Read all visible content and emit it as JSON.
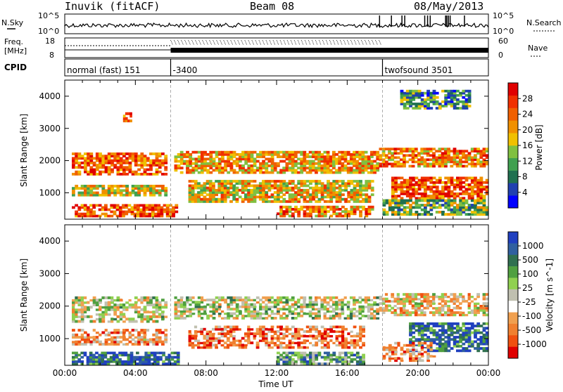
{
  "header": {
    "station": "Inuvik (fitACF)",
    "beam": "Beam 08",
    "date": "08/May/2013"
  },
  "status_panels": {
    "nsky_label": "N.Sky",
    "nsearch_label": "N.Search",
    "freq_label_1": "Freq.",
    "freq_label_2": "[MHz]",
    "nave_label": "Nave",
    "cpid_label": "CPID",
    "noise_ticks_left": [
      "10^5",
      "10^0"
    ],
    "noise_ticks_right": [
      "10^5",
      "10^0"
    ],
    "freq_ticks_left": [
      "18",
      "8"
    ],
    "nave_ticks_right": [
      "60",
      "0"
    ],
    "cpid_segments": [
      {
        "label": "normal (fast) 151",
        "start_hour": 0
      },
      {
        "label": "-3400",
        "start_hour": 6.0
      },
      {
        "label": "twofsound 3501",
        "start_hour": 18.0
      }
    ]
  },
  "chart_data": [
    {
      "type": "heatmap",
      "title": "",
      "ylabel": "Slant Range [km]",
      "xlabel": "",
      "xlim": [
        0,
        24
      ],
      "ylim": [
        180,
        4500
      ],
      "yticks": [
        "1000",
        "2000",
        "3000",
        "4000"
      ],
      "colorbar": {
        "label": "Power [dB]",
        "ticks": [
          "4",
          "8",
          "12",
          "16",
          "20",
          "24",
          "28"
        ],
        "colors": [
          "#0000ff",
          "#2040b0",
          "#207050",
          "#40a050",
          "#80c040",
          "#f0c000",
          "#f09000",
          "#f06000",
          "#f03000",
          "#e00000"
        ]
      },
      "bands": [
        {
          "t0": 0.4,
          "t1": 5.8,
          "r0": 1550,
          "r1": 2250,
          "level": 0.75
        },
        {
          "t0": 0.4,
          "t1": 5.8,
          "r0": 900,
          "r1": 1250,
          "level": 0.55
        },
        {
          "t0": 0.4,
          "t1": 6.4,
          "r0": 250,
          "r1": 650,
          "level": 0.8
        },
        {
          "t0": 6.2,
          "t1": 17.8,
          "r0": 1600,
          "r1": 2300,
          "level": 0.65
        },
        {
          "t0": 7.0,
          "t1": 17.5,
          "r0": 700,
          "r1": 1400,
          "level": 0.6
        },
        {
          "t0": 12.0,
          "t1": 17.5,
          "r0": 250,
          "r1": 600,
          "level": 0.7
        },
        {
          "t0": 17.8,
          "t1": 24.0,
          "r0": 1800,
          "r1": 2400,
          "level": 0.7
        },
        {
          "t0": 18.5,
          "t1": 24.0,
          "r0": 800,
          "r1": 1500,
          "level": 0.8
        },
        {
          "t0": 18.0,
          "t1": 24.0,
          "r0": 300,
          "r1": 800,
          "level": 0.4
        },
        {
          "t0": 19.0,
          "t1": 23.0,
          "r0": 3600,
          "r1": 4200,
          "level": 0.3
        },
        {
          "t0": 3.3,
          "t1": 3.8,
          "r0": 3200,
          "r1": 3500,
          "level": 0.7
        }
      ]
    },
    {
      "type": "heatmap",
      "title": "",
      "ylabel": "Slant Range [km]",
      "xlabel": "Time UT",
      "xlim": [
        0,
        24
      ],
      "ylim": [
        180,
        4500
      ],
      "xticks": [
        "00:00",
        "04:00",
        "08:00",
        "12:00",
        "16:00",
        "20:00",
        "00:00"
      ],
      "yticks": [
        "1000",
        "2000",
        "3000",
        "4000"
      ],
      "colorbar": {
        "label": "Velocity [m s^-1]",
        "ticks": [
          "1000",
          "500",
          "100",
          "25",
          "-25",
          "-100",
          "-500",
          "-1000"
        ],
        "colors": [
          "#2040c0",
          "#3060a0",
          "#307050",
          "#50a040",
          "#90d050",
          "#c0c0b0",
          "#ffffff",
          "#f0a050",
          "#f08030",
          "#f05010",
          "#e00000"
        ]
      },
      "bands": [
        {
          "t0": 0.4,
          "t1": 5.8,
          "r0": 1500,
          "r1": 2300,
          "level": 0.5
        },
        {
          "t0": 0.4,
          "t1": 5.8,
          "r0": 800,
          "r1": 1300,
          "level": 0.3
        },
        {
          "t0": 0.4,
          "t1": 6.5,
          "r0": 200,
          "r1": 600,
          "level": 0.85
        },
        {
          "t0": 6.2,
          "t1": 17.8,
          "r0": 1600,
          "r1": 2300,
          "level": 0.5
        },
        {
          "t0": 7.0,
          "t1": 17.0,
          "r0": 700,
          "r1": 1400,
          "level": 0.25
        },
        {
          "t0": 12.0,
          "t1": 17.0,
          "r0": 200,
          "r1": 600,
          "level": 0.7
        },
        {
          "t0": 17.8,
          "t1": 24.0,
          "r0": 1700,
          "r1": 2400,
          "level": 0.4
        },
        {
          "t0": 19.5,
          "t1": 24.0,
          "r0": 600,
          "r1": 1500,
          "level": 0.85
        },
        {
          "t0": 18.0,
          "t1": 21.0,
          "r0": 300,
          "r1": 900,
          "level": 0.3
        }
      ]
    }
  ]
}
